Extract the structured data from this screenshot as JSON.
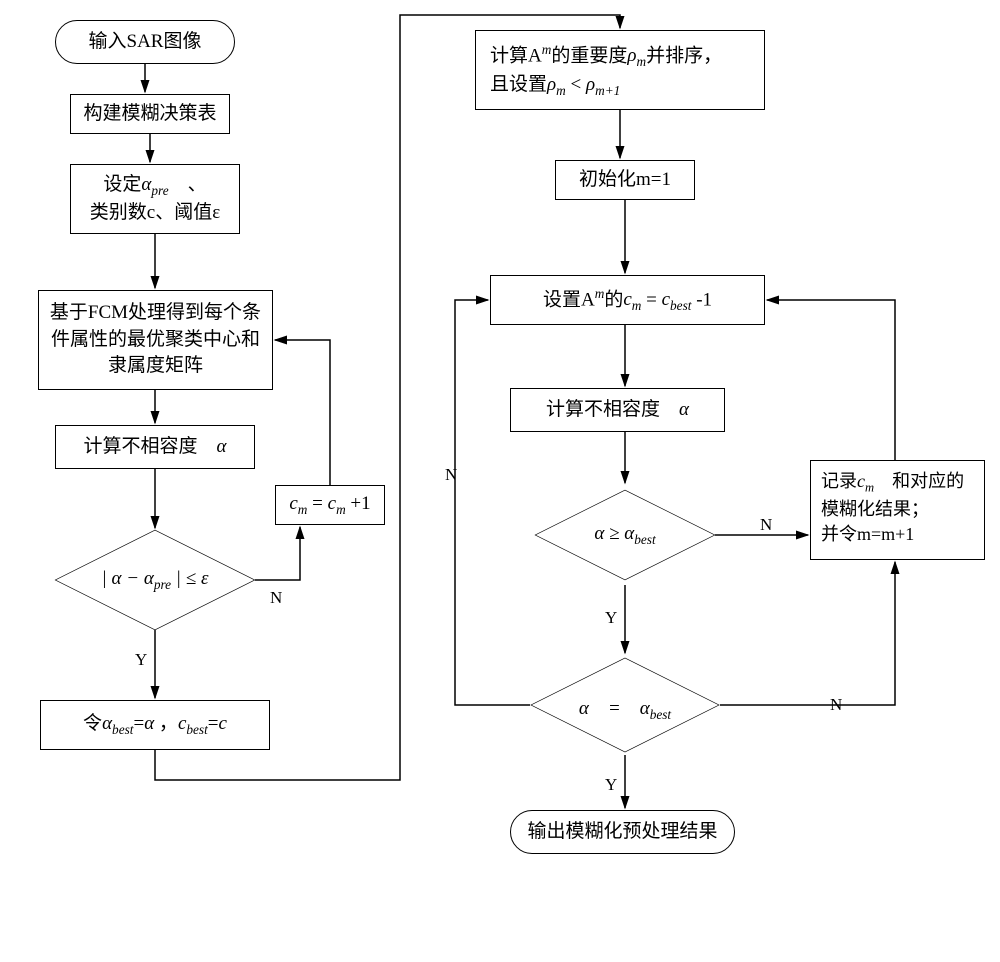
{
  "type": "flowchart",
  "background_color": "#ffffff",
  "stroke_color": "#000000",
  "stroke_width": 1.5,
  "font_family_cjk": "SimSun",
  "font_family_math": "Times New Roman",
  "base_fontsize": 19,
  "nodes": {
    "n1": {
      "shape": "terminal",
      "text": "输入SAR图像"
    },
    "n2": {
      "shape": "rect",
      "text": "构建模糊决策表"
    },
    "n3": {
      "shape": "rect",
      "html": "设定<span class='math'>α<span class='sub'>pre</span></span>　、<br>类别数c、阈值ε"
    },
    "n4": {
      "shape": "rect",
      "text": "基于FCM处理得到每个条件属性的最优聚类中心和隶属度矩阵"
    },
    "n5": {
      "shape": "rect",
      "html": "计算不相容度　<span class='math'>α</span>"
    },
    "n6": {
      "shape": "diamond",
      "html": "| <span class='math'>α</span> − <span class='math'>α<span class='sub'>pre</span></span> | ≤ <span class='math'>ε</span>"
    },
    "n7": {
      "shape": "rect",
      "html": "<span class='math'>c<span class='sub'>m</span></span> = <span class='math'>c<span class='sub'>m</span></span> +1"
    },
    "n8": {
      "shape": "rect",
      "html": "令<span class='math'>α</span><span class='sub'>best</span>=<span class='math'>α</span> ，<span class='math'>c<span class='sub'>best</span></span>=<span class='math'>c</span>"
    },
    "n9": {
      "shape": "rect",
      "html": "计算A<span class='sup'>m</span>的重要度<span class='math'>ρ<span class='sub'>m</span></span>并排序，<br>且设置<span class='math'>ρ<span class='sub'>m</span></span> &lt; <span class='math'>ρ<span class='sub'>m+1</span></span>"
    },
    "n10": {
      "shape": "rect",
      "text": "初始化m=1"
    },
    "n11": {
      "shape": "rect",
      "html": "设置A<span class='sup'>m</span>的<span class='math'>c<span class='sub'>m</span></span> = <span class='math'>c<span class='sub'>best</span></span> -1"
    },
    "n12": {
      "shape": "rect",
      "html": "计算不相容度　<span class='math'>α</span>"
    },
    "n13": {
      "shape": "diamond",
      "html": "<span class='math'>α</span> ≥ <span class='math'>α</span><span class='sub'>best</span>"
    },
    "n14": {
      "shape": "rect",
      "html": "记录<span class='math'>c<span class='sub'>m</span></span>　和对应的<br>模糊化结果；<br>并令m=m+1"
    },
    "n15": {
      "shape": "diamond",
      "html": "<span class='math'>α</span>　=　<span class='math'>α</span><span class='sub'>best</span>"
    },
    "n16": {
      "shape": "terminal",
      "text": "输出模糊化预处理结果"
    }
  },
  "edge_labels": {
    "yes": "Y",
    "no": "N"
  },
  "edges": [
    {
      "from": "n1",
      "to": "n2"
    },
    {
      "from": "n2",
      "to": "n3"
    },
    {
      "from": "n3",
      "to": "n4"
    },
    {
      "from": "n4",
      "to": "n5"
    },
    {
      "from": "n5",
      "to": "n6"
    },
    {
      "from": "n6",
      "to": "n7",
      "label": "N"
    },
    {
      "from": "n7",
      "to": "n4"
    },
    {
      "from": "n6",
      "to": "n8",
      "label": "Y"
    },
    {
      "from": "n8",
      "to": "n9"
    },
    {
      "from": "n9",
      "to": "n10"
    },
    {
      "from": "n10",
      "to": "n11"
    },
    {
      "from": "n11",
      "to": "n12"
    },
    {
      "from": "n12",
      "to": "n13"
    },
    {
      "from": "n13",
      "to": "n14",
      "label": "N"
    },
    {
      "from": "n14",
      "to": "n11"
    },
    {
      "from": "n13",
      "to": "n15",
      "label": "Y"
    },
    {
      "from": "n15",
      "to": "n11",
      "label": "N"
    },
    {
      "from": "n15",
      "to": "n16",
      "label": "Y"
    }
  ]
}
